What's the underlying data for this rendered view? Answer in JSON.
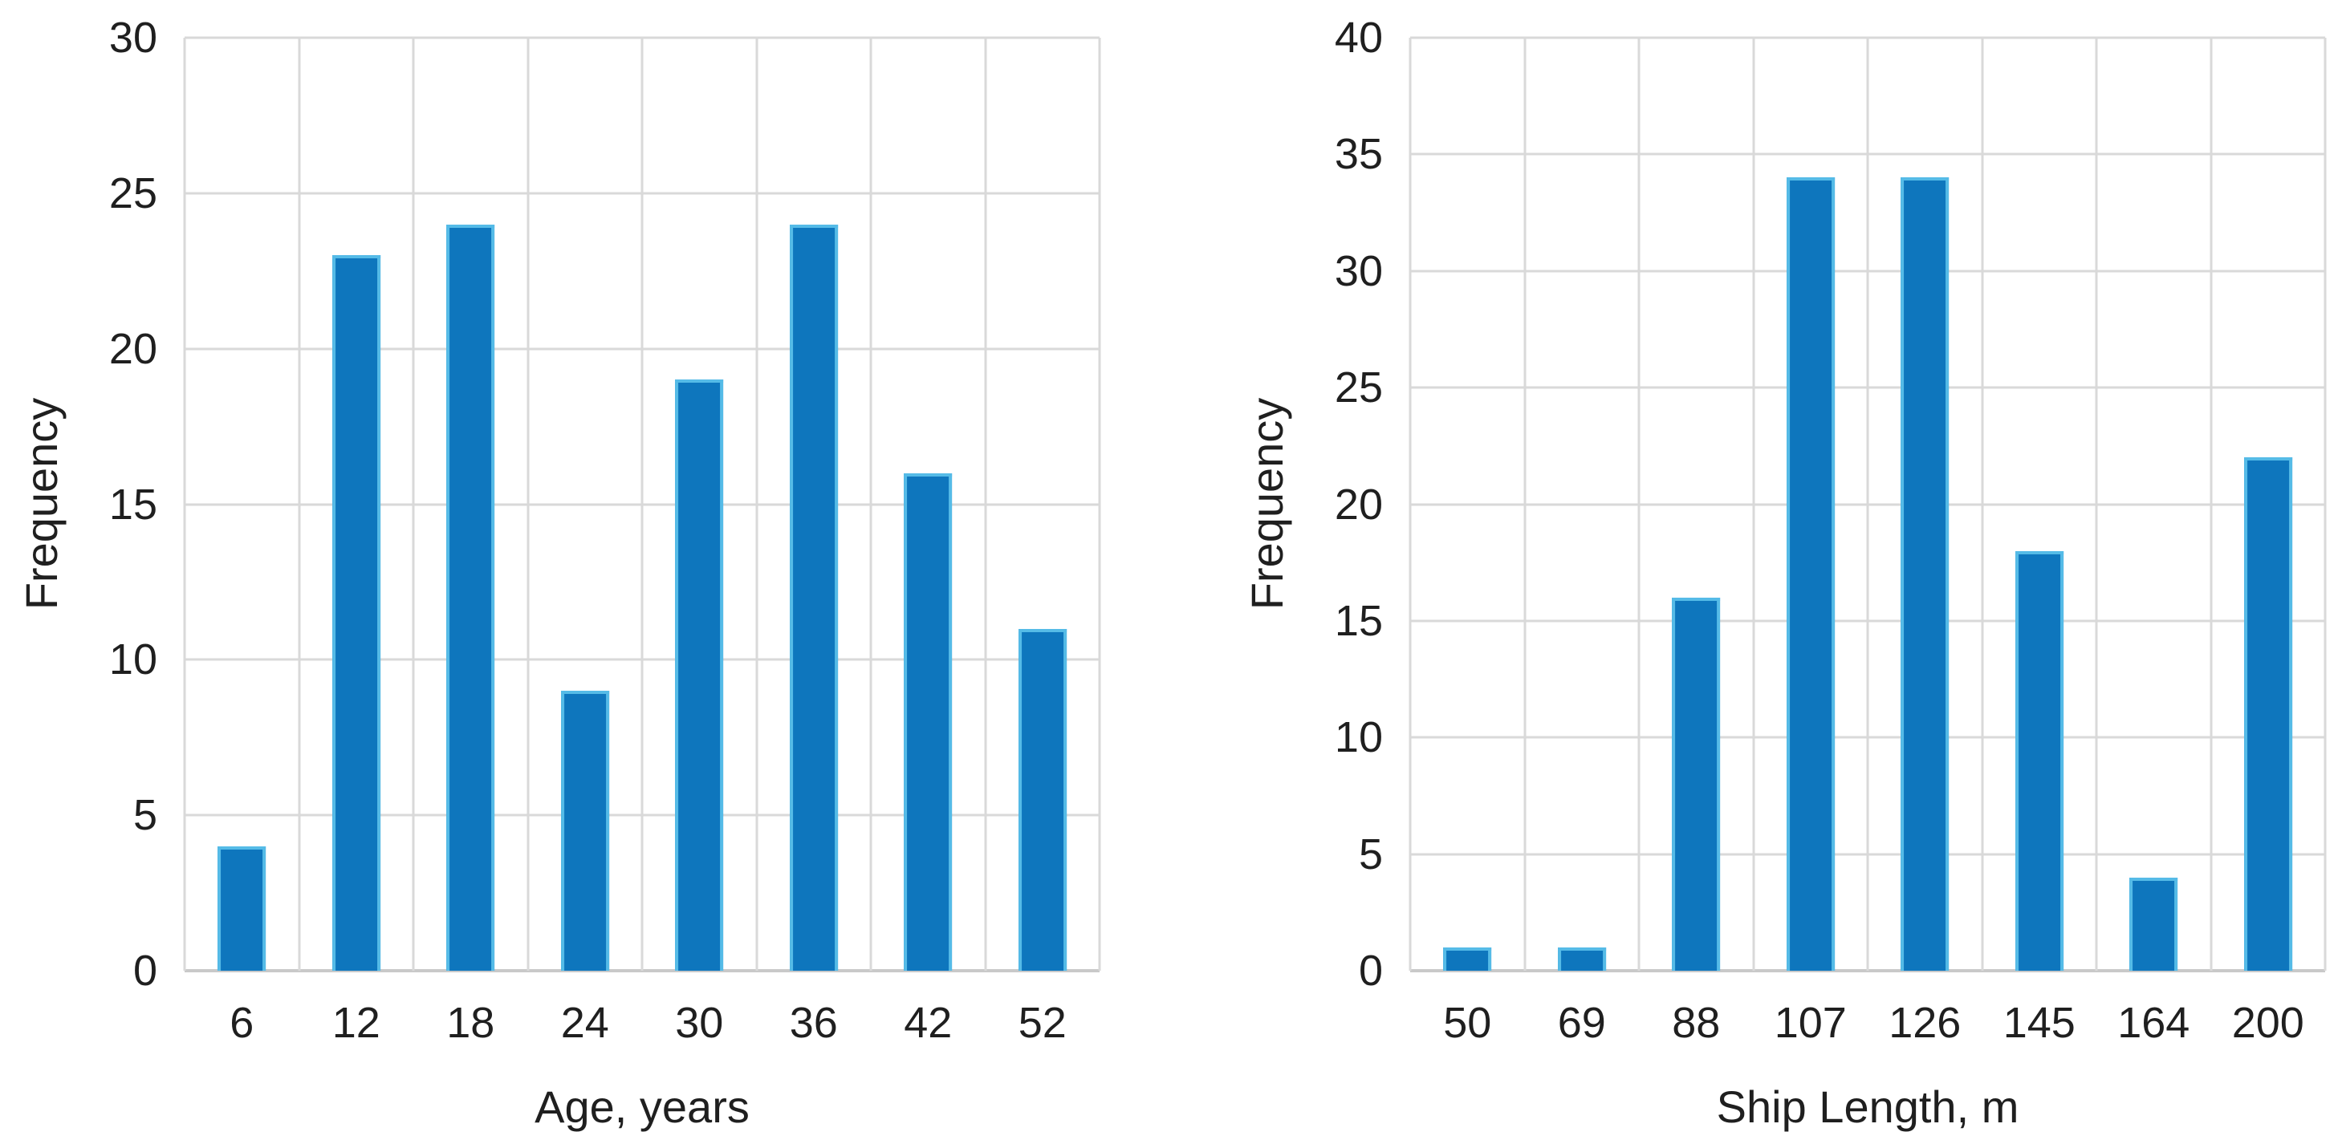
{
  "page": {
    "background_color": "#ffffff",
    "text_color": "#1f1f1f"
  },
  "chart_data": [
    {
      "type": "bar",
      "title": "",
      "categories": [
        "6",
        "12",
        "18",
        "24",
        "30",
        "36",
        "42",
        "52"
      ],
      "values": [
        4,
        23,
        24,
        9,
        19,
        24,
        16,
        11
      ],
      "xlabel": "Age, years",
      "ylabel": "Frequency",
      "ylim": [
        0,
        30
      ],
      "ytick_step": 5,
      "yticks": [
        0,
        5,
        10,
        15,
        20,
        25,
        30
      ],
      "grid": "both",
      "legend": "none",
      "bar_color": "#0e76bd",
      "bar_edge_color": "#55bbe7",
      "grid_color": "#d9d9d9",
      "axis_color": "#c9c9c9"
    },
    {
      "type": "bar",
      "title": "",
      "categories": [
        "50",
        "69",
        "88",
        "107",
        "126",
        "145",
        "164",
        "200"
      ],
      "values": [
        1,
        1,
        16,
        34,
        34,
        18,
        4,
        22
      ],
      "xlabel": "Ship Length, m",
      "ylabel": "Frequency",
      "ylim": [
        0,
        40
      ],
      "ytick_step": 5,
      "yticks": [
        0,
        5,
        10,
        15,
        20,
        25,
        30,
        35,
        40
      ],
      "grid": "both",
      "legend": "none",
      "bar_color": "#0e76bd",
      "bar_edge_color": "#55bbe7",
      "grid_color": "#d9d9d9",
      "axis_color": "#c9c9c9"
    }
  ]
}
